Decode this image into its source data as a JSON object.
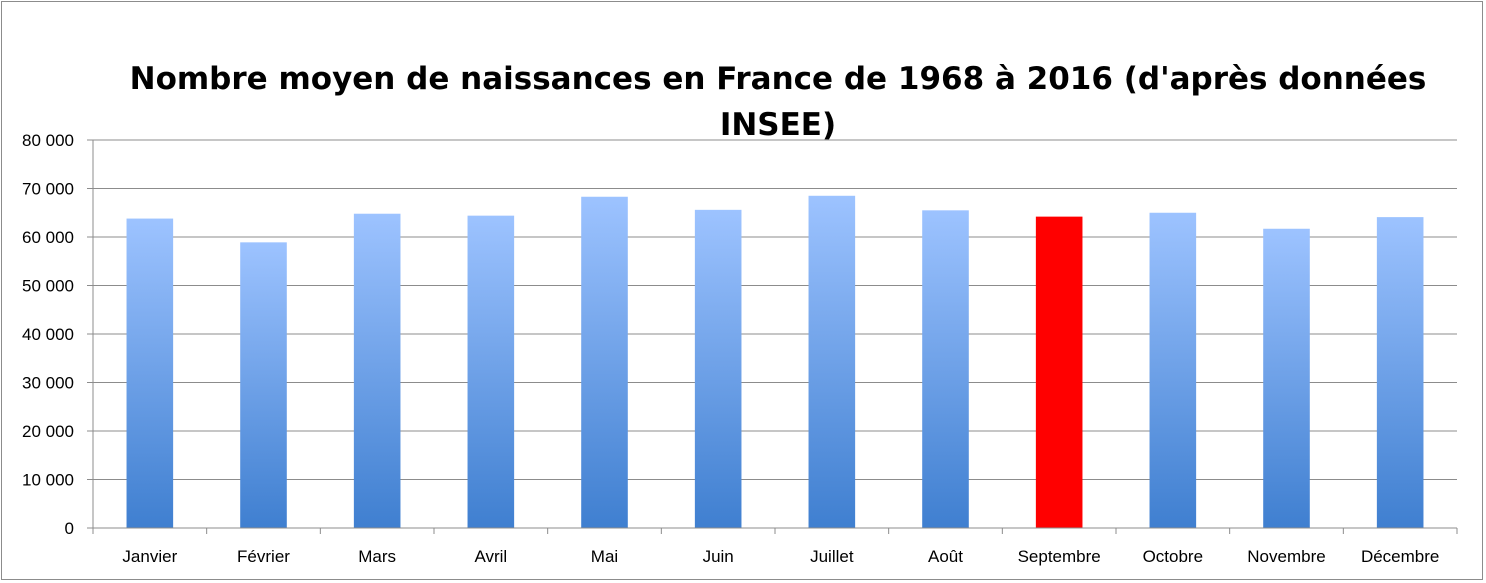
{
  "chart_data": {
    "type": "bar",
    "title": "Nombre moyen de naissances en France de 1968 à 2016 (d'après données INSEE)",
    "xlabel": "",
    "ylabel": "",
    "categories": [
      "Janvier",
      "Février",
      "Mars",
      "Avril",
      "Mai",
      "Juin",
      "Juillet",
      "Août",
      "Septembre",
      "Octobre",
      "Novembre",
      "Décembre"
    ],
    "values": [
      63800,
      58900,
      64800,
      64400,
      68300,
      65600,
      68500,
      65500,
      64200,
      65000,
      61700,
      64100
    ],
    "ylim": [
      0,
      80000
    ],
    "yticks": [
      0,
      10000,
      20000,
      30000,
      40000,
      50000,
      60000,
      70000,
      80000
    ],
    "ytick_labels": [
      "0",
      "10 000",
      "20 000",
      "30 000",
      "40 000",
      "50 000",
      "60 000",
      "70 000",
      "80 000"
    ],
    "grid": true,
    "legend": "none",
    "highlight_index": 8,
    "colors": {
      "bar_top": "#9dc3ff",
      "bar_bottom": "#3f7fd0",
      "highlight": "#ff0000",
      "grid": "#8c8c8c",
      "axis": "#8c8c8c"
    }
  }
}
